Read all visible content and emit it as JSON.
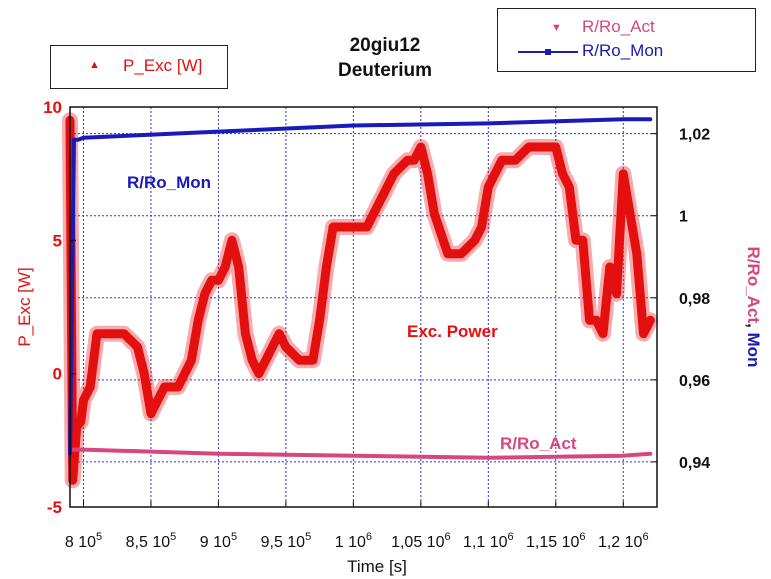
{
  "chart_data": {
    "type": "line",
    "title": "20giu12",
    "subtitle": "Deuterium",
    "xlabel": "Time [s]",
    "ylabel_left": "P_Exc [W]",
    "ylabel_right_act": "R/Ro_Act",
    "ylabel_right_sep": ", ",
    "ylabel_right_mon": "Mon",
    "xlim": [
      790000,
      1225000
    ],
    "ylim_left": [
      -5,
      10
    ],
    "ylim_right": [
      0.929,
      1.0265
    ],
    "x_ticks": [
      800000,
      850000,
      900000,
      950000,
      1000000,
      1050000,
      1100000,
      1150000,
      1200000
    ],
    "x_tick_labels": [
      "8 10",
      "8,5 10",
      "9 10",
      "9,5 10",
      "1 10",
      "1,05 10",
      "1,1 10",
      "1,15 10",
      "1,2 10"
    ],
    "x_tick_exponents": [
      "5",
      "5",
      "5",
      "5",
      "6",
      "6",
      "6",
      "6",
      "6"
    ],
    "y_left_ticks": [
      10,
      5,
      0,
      -5
    ],
    "y_left_tick_labels": [
      "10",
      "5",
      "0",
      "-5"
    ],
    "y_right_ticks": [
      1.02,
      1.0,
      0.98,
      0.96,
      0.94
    ],
    "y_right_tick_labels": [
      "1,02",
      "1",
      "0,98",
      "0,96",
      "0,94"
    ],
    "grid": true,
    "colors": {
      "p_exc": "#e41010",
      "r_act": "#d6477e",
      "r_mon": "#1a1ab8",
      "grid": "#3333cc"
    },
    "series": [
      {
        "name": "P_Exc [W]",
        "axis": "left",
        "x": [
          790000,
          792000,
          795000,
          798000,
          800000,
          805000,
          810000,
          820000,
          830000,
          840000,
          845000,
          850000,
          855000,
          860000,
          870000,
          880000,
          885000,
          890000,
          895000,
          900000,
          905000,
          910000,
          915000,
          920000,
          925000,
          930000,
          935000,
          940000,
          945000,
          950000,
          960000,
          970000,
          975000,
          980000,
          985000,
          990000,
          1000000,
          1010000,
          1020000,
          1030000,
          1040000,
          1045000,
          1050000,
          1055000,
          1060000,
          1070000,
          1080000,
          1090000,
          1095000,
          1100000,
          1110000,
          1120000,
          1130000,
          1140000,
          1145000,
          1150000,
          1155000,
          1160000,
          1165000,
          1170000,
          1175000,
          1180000,
          1185000,
          1190000,
          1195000,
          1200000,
          1205000,
          1210000,
          1215000,
          1220000
        ],
        "y": [
          9.5,
          -4.0,
          -2.0,
          -1.8,
          -1.0,
          -0.5,
          1.5,
          1.5,
          1.5,
          1.0,
          0.0,
          -1.5,
          -1.0,
          -0.5,
          -0.5,
          0.5,
          2.0,
          3.0,
          3.5,
          3.5,
          4.0,
          5.0,
          4.0,
          1.5,
          0.5,
          0.0,
          0.5,
          1.0,
          1.5,
          1.0,
          0.5,
          0.5,
          2.0,
          4.0,
          5.5,
          5.5,
          5.5,
          5.5,
          6.5,
          7.5,
          8.0,
          8.0,
          8.5,
          7.5,
          6.0,
          4.5,
          4.5,
          5.0,
          5.5,
          7.0,
          8.0,
          8.0,
          8.5,
          8.5,
          8.5,
          8.5,
          7.5,
          7.0,
          5.0,
          5.0,
          2.0,
          2.0,
          1.5,
          4.0,
          3.0,
          7.5,
          6.0,
          4.5,
          1.5,
          2.0
        ]
      },
      {
        "name": "R/Ro_Act",
        "axis": "right",
        "x": [
          790000,
          795000,
          800000,
          900000,
          1000000,
          1100000,
          1200000,
          1220000
        ],
        "y": [
          0.943,
          0.943,
          0.943,
          0.942,
          0.9415,
          0.941,
          0.9415,
          0.942
        ]
      },
      {
        "name": "R/Ro_Mon",
        "axis": "right",
        "x": [
          790000,
          793000,
          796000,
          800000,
          900000,
          1000000,
          1100000,
          1200000,
          1220000
        ],
        "y": [
          0.942,
          1.0185,
          1.0185,
          1.019,
          1.0205,
          1.022,
          1.0225,
          1.0235,
          1.0235
        ]
      }
    ],
    "annotations": [
      "R/Ro_Mon",
      "Exc. Power",
      "R/Ro_Act"
    ],
    "legend_left": {
      "entry": "P_Exc [W]",
      "placement": "top-left"
    },
    "legend_right": {
      "entries": [
        "R/Ro_Act",
        "R/Ro_Mon"
      ],
      "placement": "top-right"
    }
  }
}
